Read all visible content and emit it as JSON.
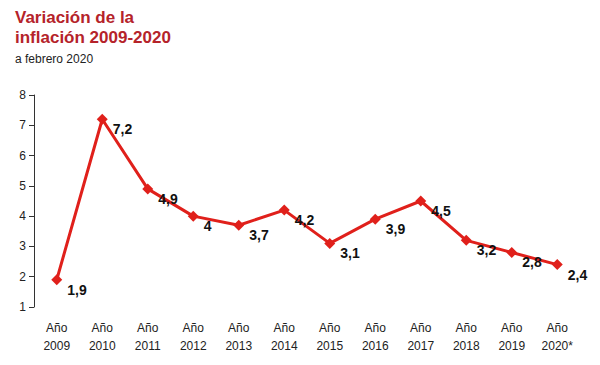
{
  "chart_data": {
    "type": "line",
    "title": "Variación de la\ninflación 2009-2020",
    "subtitle": "a febrero 2020",
    "categories": [
      "Año\n2009",
      "Año\n2010",
      "Año\n2011",
      "Año\n2012",
      "Año\n2013",
      "Año\n2014",
      "Año\n2015",
      "Año\n2016",
      "Año\n2017",
      "Año\n2018",
      "Año\n2019",
      "Año\n2020*"
    ],
    "values": [
      1.9,
      7.2,
      4.9,
      4,
      3.7,
      4.2,
      3.1,
      3.9,
      4.5,
      3.2,
      2.8,
      2.4
    ],
    "value_labels": [
      "1,9",
      "7,2",
      "4,9",
      "4",
      "3,7",
      "4,2",
      "3,1",
      "3,9",
      "4,5",
      "3,2",
      "2,8",
      "2,4"
    ],
    "color": "#e0201b",
    "marker": "diamond",
    "data_labels": true,
    "grid": false,
    "ylim": [
      1,
      8
    ],
    "yticks": [
      1,
      2,
      3,
      4,
      5,
      6,
      7,
      8
    ]
  }
}
